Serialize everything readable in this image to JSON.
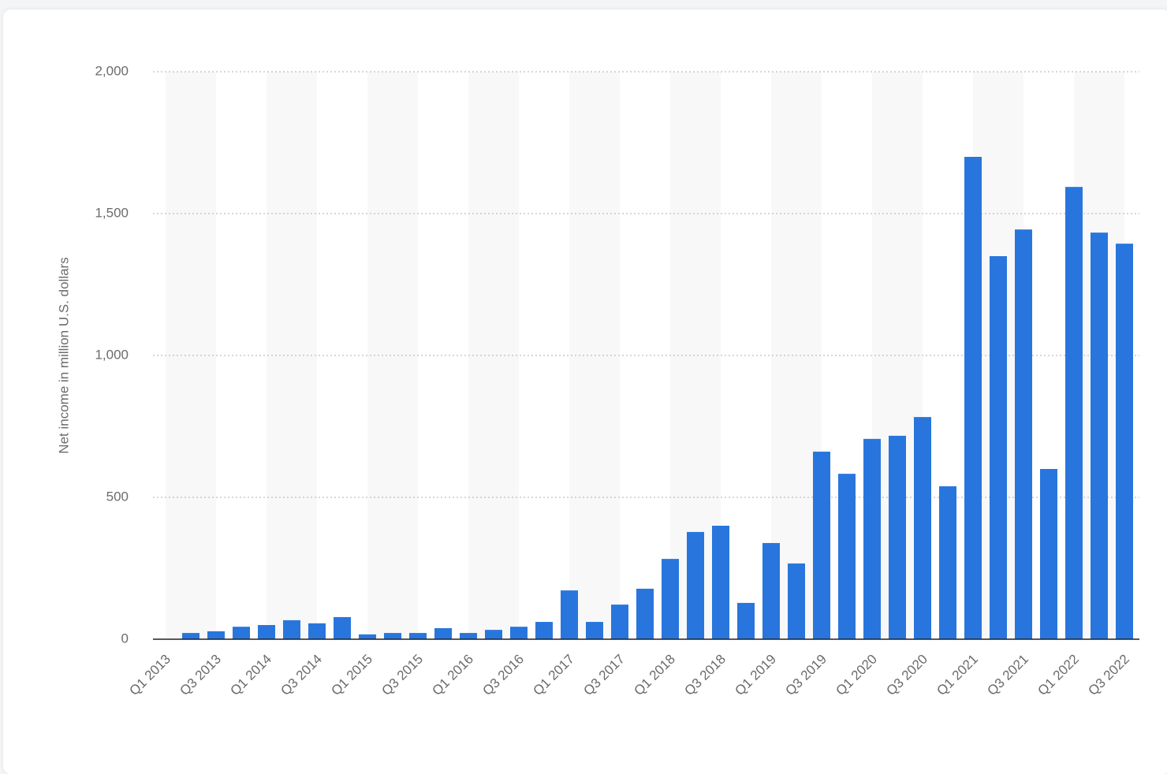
{
  "chart_data": {
    "type": "bar",
    "y_label": "Net income in million U.S. dollars",
    "categories": [
      "Q1 2013",
      null,
      "Q3 2013",
      null,
      "Q1 2014",
      null,
      "Q3 2014",
      null,
      "Q1 2015",
      null,
      "Q3 2015",
      null,
      "Q1 2016",
      null,
      "Q3 2016",
      null,
      "Q1 2017",
      null,
      "Q3 2017",
      null,
      "Q1 2018",
      null,
      "Q3 2018",
      null,
      "Q1 2019",
      null,
      "Q3 2019",
      null,
      "Q1 2020",
      null,
      "Q3 2020",
      null,
      "Q1 2021",
      null,
      "Q3 2021",
      null,
      "Q1 2022",
      null,
      "Q3 2022"
    ],
    "values": [
      null,
      22,
      28,
      44,
      50,
      67,
      56,
      78,
      17,
      22,
      22,
      39,
      22,
      33,
      44,
      61,
      172,
      61,
      122,
      178,
      283,
      378,
      400,
      128,
      339,
      267,
      661,
      583,
      706,
      717,
      783,
      539,
      1700,
      1350,
      1444,
      600,
      1594,
      1433,
      1394
    ],
    "color": "#2876dd",
    "ylim": [
      0,
      2000
    ],
    "yticks": [
      0,
      500,
      {
        "value": 1000,
        "label": "1,000"
      },
      {
        "value": 1500,
        "label": "1,500"
      },
      {
        "value": 2000,
        "label": "2,000"
      }
    ],
    "grid": true
  }
}
